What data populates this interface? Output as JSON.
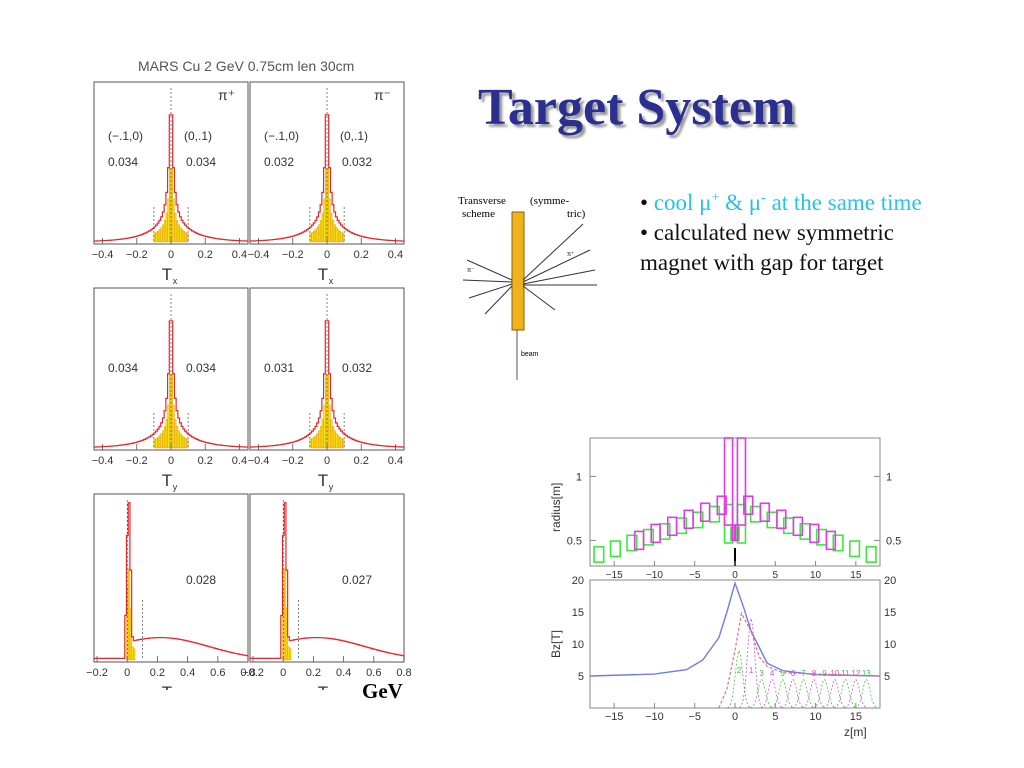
{
  "slide": {
    "title": "Target System",
    "bullets": [
      {
        "prefix": "• ",
        "cyan_a": "cool μ",
        "sup1": "+",
        "cyan_b": " & μ",
        "sup2": "-",
        "cyan_c": " at the same time"
      },
      {
        "text": "• calculated new symmetric magnet with gap for target"
      }
    ],
    "unit_label": "GeV"
  },
  "colors": {
    "title": "#2b2f8f",
    "bullet_cyan": "#26c3e8",
    "hist_line": "#e8262a",
    "hist_fill": "#f6e214",
    "rad_magenta": "#e23ae8",
    "rad_green": "#3ee83a",
    "field_blue": "#6f7de8",
    "field_pink": "#e8707e"
  },
  "hist_panel": {
    "header": "MARS Cu 2 GeV 0.75cm len 30cm",
    "sign_plus": "π⁺",
    "sign_minus": "π⁻",
    "xtick_labels_T": [
      "−0.4",
      "−0.2",
      "0",
      "0.2",
      "0.4"
    ],
    "xtick_labels_Tz": [
      "−0.2",
      "0",
      "0.2",
      "0.4",
      "0.6",
      "0.8"
    ]
  },
  "chart_data": [
    {
      "type": "histogram",
      "name": "pi-plus-Tx",
      "xlabel": "Tx",
      "xlim": [
        -0.45,
        0.45
      ],
      "region_labels": [
        "(−.1,0)",
        "(0,.1)"
      ],
      "values": [
        "0.034",
        "0.034"
      ]
    },
    {
      "type": "histogram",
      "name": "pi-minus-Tx",
      "xlabel": "Tx",
      "xlim": [
        -0.45,
        0.45
      ],
      "region_labels": [
        "(−.1,0)",
        "(0,.1)"
      ],
      "values": [
        "0.032",
        "0.032"
      ]
    },
    {
      "type": "histogram",
      "name": "pi-plus-Ty",
      "xlabel": "Ty",
      "xlim": [
        -0.45,
        0.45
      ],
      "values": [
        "0.034",
        "0.034"
      ]
    },
    {
      "type": "histogram",
      "name": "pi-minus-Ty",
      "xlabel": "Ty",
      "xlim": [
        -0.45,
        0.45
      ],
      "values": [
        "0.031",
        "0.032"
      ]
    },
    {
      "type": "histogram",
      "name": "pi-plus-Tz",
      "xlabel": "Tz",
      "xlim": [
        -0.22,
        0.8
      ],
      "values": [
        "0.028"
      ]
    },
    {
      "type": "histogram",
      "name": "pi-minus-Tz",
      "xlabel": "Tz",
      "xlim": [
        -0.22,
        0.8
      ],
      "values": [
        "0.027"
      ]
    },
    {
      "type": "line",
      "name": "radius-profile",
      "ylabel": "radius[m]",
      "xlim": [
        -18,
        18
      ],
      "ylim": [
        0.3,
        1.3
      ],
      "yticks": [
        "1",
        "0.5"
      ],
      "xticks": [
        "−15",
        "−10",
        "−5",
        "0",
        "5",
        "10",
        "15"
      ]
    },
    {
      "type": "line",
      "name": "field-profile",
      "ylabel": "Bz[T]",
      "xlabel": "z[m]",
      "xlim": [
        -18,
        18
      ],
      "ylim": [
        0,
        20
      ],
      "yticks": [
        "20",
        "15",
        "10",
        "5"
      ],
      "xticks": [
        "−15",
        "−10",
        "−5",
        "0",
        "5",
        "10",
        "15"
      ],
      "series_labels": [
        "2",
        "1",
        "3",
        "4",
        "5",
        "6",
        "7",
        "8",
        "9",
        "10",
        "11",
        "12",
        "13"
      ],
      "series": [
        {
          "color": "blue",
          "x": [
            -18,
            -10,
            -6,
            -4,
            -2,
            -1,
            0,
            1,
            2,
            4,
            6,
            10,
            18
          ],
          "y": [
            5,
            5.3,
            6,
            7.5,
            11,
            15,
            19.5,
            16,
            12,
            7,
            5.8,
            5.2,
            5
          ]
        }
      ]
    }
  ],
  "scheme": {
    "label_transverse": "Transverse",
    "label_scheme": "scheme",
    "label_symmetric": "(symme-",
    "label_symmetric2": "tric)",
    "label_piminus": "π⁻",
    "label_piplus": "π⁺",
    "label_beam": "beam"
  }
}
